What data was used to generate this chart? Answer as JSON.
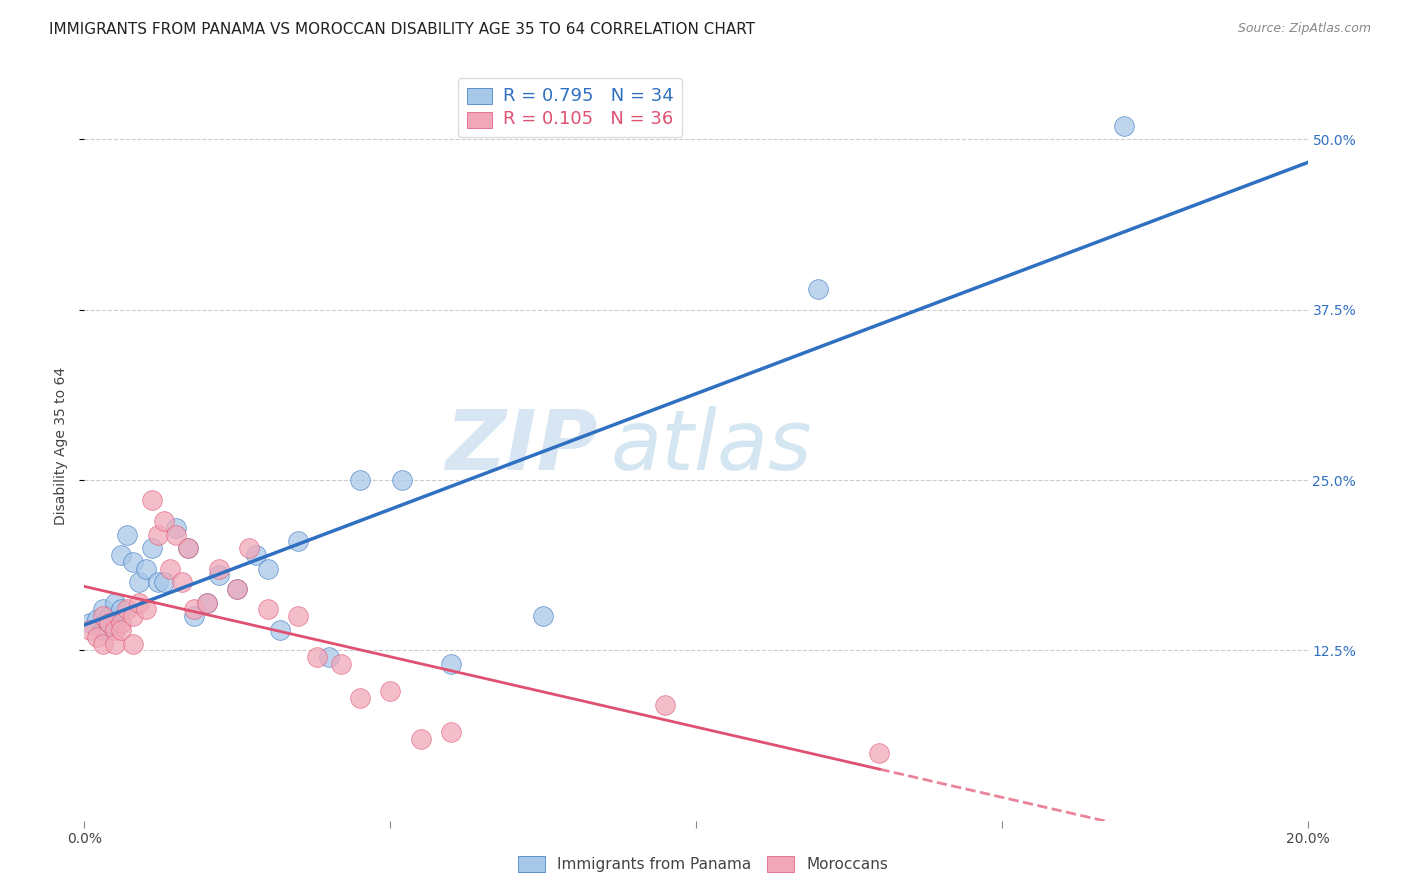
{
  "title": "IMMIGRANTS FROM PANAMA VS MOROCCAN DISABILITY AGE 35 TO 64 CORRELATION CHART",
  "source": "Source: ZipAtlas.com",
  "ylabel": "Disability Age 35 to 64",
  "watermark_zip": "ZIP",
  "watermark_atlas": "atlas",
  "r_blue": 0.795,
  "n_blue": 34,
  "r_pink": 0.105,
  "n_pink": 36,
  "xlim": [
    0.0,
    0.2
  ],
  "ylim": [
    0.0,
    0.55
  ],
  "ytick_positions": [
    0.125,
    0.25,
    0.375,
    0.5
  ],
  "ytick_labels": [
    "12.5%",
    "25.0%",
    "37.5%",
    "50.0%"
  ],
  "blue_color": "#a8c8e8",
  "blue_line_color": "#3070c0",
  "pink_color": "#f0a8b8",
  "pink_line_color": "#e05070",
  "blue_scatter_x": [
    0.001,
    0.002,
    0.003,
    0.003,
    0.004,
    0.004,
    0.005,
    0.005,
    0.006,
    0.006,
    0.007,
    0.008,
    0.009,
    0.01,
    0.011,
    0.012,
    0.013,
    0.015,
    0.017,
    0.018,
    0.02,
    0.022,
    0.025,
    0.028,
    0.03,
    0.032,
    0.035,
    0.04,
    0.045,
    0.052,
    0.06,
    0.075,
    0.12,
    0.17
  ],
  "blue_scatter_y": [
    0.145,
    0.148,
    0.155,
    0.14,
    0.15,
    0.145,
    0.16,
    0.145,
    0.155,
    0.195,
    0.21,
    0.19,
    0.175,
    0.185,
    0.2,
    0.175,
    0.175,
    0.215,
    0.2,
    0.15,
    0.16,
    0.18,
    0.17,
    0.195,
    0.185,
    0.14,
    0.205,
    0.12,
    0.25,
    0.25,
    0.115,
    0.15,
    0.39,
    0.51
  ],
  "pink_scatter_x": [
    0.001,
    0.002,
    0.003,
    0.003,
    0.004,
    0.005,
    0.005,
    0.006,
    0.006,
    0.007,
    0.008,
    0.008,
    0.009,
    0.01,
    0.011,
    0.012,
    0.013,
    0.014,
    0.015,
    0.016,
    0.017,
    0.018,
    0.02,
    0.022,
    0.025,
    0.027,
    0.03,
    0.035,
    0.038,
    0.042,
    0.045,
    0.05,
    0.055,
    0.06,
    0.095,
    0.13
  ],
  "pink_scatter_y": [
    0.14,
    0.135,
    0.15,
    0.13,
    0.145,
    0.14,
    0.13,
    0.145,
    0.14,
    0.155,
    0.15,
    0.13,
    0.16,
    0.155,
    0.235,
    0.21,
    0.22,
    0.185,
    0.21,
    0.175,
    0.2,
    0.155,
    0.16,
    0.185,
    0.17,
    0.2,
    0.155,
    0.15,
    0.12,
    0.115,
    0.09,
    0.095,
    0.06,
    0.065,
    0.085,
    0.05
  ],
  "grid_color": "#cccccc",
  "background_color": "#ffffff",
  "title_fontsize": 11,
  "axis_label_fontsize": 10,
  "tick_fontsize": 10,
  "legend_fontsize": 13
}
